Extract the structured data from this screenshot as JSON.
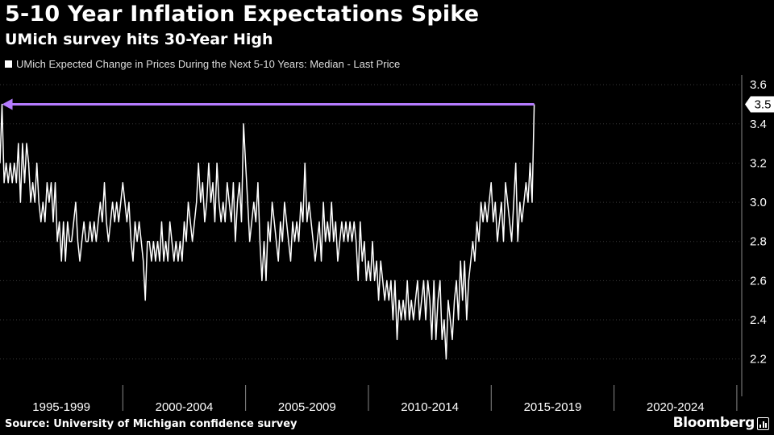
{
  "title": "5-10 Year Inflation Expectations Spike",
  "subtitle": "UMich survey hits 30-Year High",
  "source": "Source: University of Michigan confidence survey",
  "brand": "Bloomberg",
  "colors": {
    "background": "#000000",
    "line": "#ffffff",
    "arrow": "#b57bff",
    "grid": "#3a3a3a"
  },
  "chart_data": {
    "type": "line",
    "title": "5-10 Year Inflation Expectations Spike",
    "subtitle": "UMich survey hits 30-Year High",
    "xlabel": "",
    "ylabel": "",
    "ylim": [
      2.1,
      3.65
    ],
    "y_ticks": [
      2.2,
      2.4,
      2.6,
      2.8,
      3.0,
      3.2,
      3.4,
      3.6
    ],
    "y_tick_labels": [
      "2.2",
      "2.4",
      "2.6",
      "2.8",
      "3.0",
      "3.2",
      "3.4",
      "3.6"
    ],
    "x_range": [
      1995.0,
      2025.2
    ],
    "x_period_labels": [
      "1995-1999",
      "2000-2004",
      "2005-2009",
      "2010-2014",
      "2015-2019",
      "2020-2024"
    ],
    "x_period_starts": [
      1995,
      2000,
      2005,
      2010,
      2015,
      2020,
      2025
    ],
    "legend": [
      "UMich Expected Change in Prices During the Next 5-10 Years: Median - Last Price"
    ],
    "legend_position": "top-left",
    "last_value": 3.5,
    "last_value_label": "3.5",
    "annotation": "arrow from latest value back to early-1995 level",
    "series": [
      {
        "name": "UMich Expected Change in Prices During the Next 5-10 Years: Median - Last Price",
        "start_year": 1995.0,
        "step_years": 0.08333,
        "values": [
          3.2,
          3.5,
          3.1,
          3.2,
          3.1,
          3.2,
          3.1,
          3.2,
          3.1,
          3.3,
          3.0,
          3.3,
          3.1,
          3.3,
          3.2,
          3.0,
          3.1,
          3.0,
          3.2,
          3.0,
          2.9,
          3.0,
          2.9,
          3.1,
          3.0,
          3.1,
          2.9,
          3.1,
          2.8,
          2.9,
          2.7,
          2.9,
          2.7,
          2.9,
          2.8,
          2.8,
          2.9,
          3.0,
          2.8,
          2.7,
          2.8,
          2.9,
          2.8,
          2.8,
          2.9,
          2.8,
          2.9,
          2.8,
          2.9,
          3.0,
          2.9,
          3.1,
          2.9,
          2.8,
          2.9,
          3.0,
          2.9,
          3.0,
          2.9,
          3.0,
          3.1,
          3.0,
          2.9,
          3.0,
          2.8,
          2.7,
          2.9,
          2.8,
          2.9,
          2.8,
          2.7,
          2.5,
          2.8,
          2.8,
          2.7,
          2.8,
          2.7,
          2.8,
          2.7,
          2.9,
          2.7,
          2.8,
          2.7,
          2.9,
          2.8,
          2.7,
          2.8,
          2.7,
          2.8,
          2.7,
          2.9,
          2.8,
          3.0,
          2.9,
          2.8,
          2.9,
          3.0,
          3.2,
          3.0,
          3.1,
          2.9,
          3.0,
          3.2,
          3.0,
          3.1,
          2.9,
          3.2,
          3.0,
          2.9,
          3.0,
          2.9,
          3.1,
          3.0,
          2.9,
          3.1,
          2.8,
          3.0,
          3.1,
          2.9,
          3.4,
          3.2,
          3.0,
          2.8,
          2.9,
          3.0,
          2.9,
          3.1,
          2.8,
          2.6,
          2.8,
          2.6,
          2.9,
          2.8,
          3.0,
          2.9,
          2.8,
          2.7,
          2.9,
          2.8,
          3.0,
          2.9,
          2.8,
          2.7,
          2.9,
          2.8,
          2.9,
          2.8,
          3.0,
          2.9,
          3.2,
          2.9,
          3.0,
          2.9,
          2.8,
          2.7,
          2.8,
          2.9,
          2.7,
          3.0,
          2.8,
          2.9,
          2.8,
          3.0,
          2.8,
          2.9,
          2.7,
          2.8,
          2.9,
          2.8,
          2.9,
          2.8,
          2.9,
          2.8,
          2.9,
          2.8,
          2.6,
          2.9,
          2.7,
          2.8,
          2.6,
          2.7,
          2.6,
          2.8,
          2.6,
          2.7,
          2.5,
          2.7,
          2.6,
          2.5,
          2.6,
          2.5,
          2.6,
          2.4,
          2.6,
          2.3,
          2.5,
          2.4,
          2.5,
          2.4,
          2.6,
          2.4,
          2.5,
          2.4,
          2.5,
          2.6,
          2.4,
          2.5,
          2.6,
          2.4,
          2.6,
          2.5,
          2.3,
          2.6,
          2.3,
          2.5,
          2.6,
          2.3,
          2.4,
          2.2,
          2.5,
          2.4,
          2.3,
          2.5,
          2.6,
          2.4,
          2.7,
          2.5,
          2.7,
          2.4,
          2.6,
          2.7,
          2.8,
          2.7,
          2.9,
          2.8,
          3.0,
          2.9,
          3.0,
          2.9,
          3.0,
          3.1,
          2.9,
          3.0,
          2.8,
          2.9,
          3.0,
          2.8,
          3.1,
          3.0,
          2.9,
          2.8,
          3.0,
          3.2,
          2.8,
          3.0,
          2.9,
          3.0,
          3.1,
          3.0,
          3.2,
          3.0,
          3.5
        ]
      }
    ]
  }
}
